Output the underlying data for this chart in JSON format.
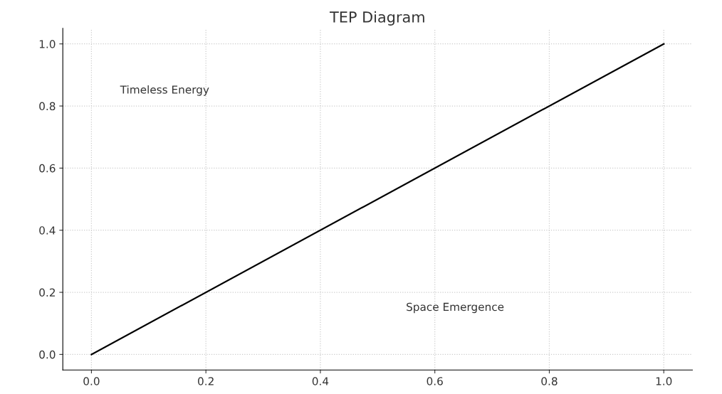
{
  "chart_data": {
    "type": "line",
    "title": "TEP Diagram",
    "x": [
      0,
      1
    ],
    "series": [
      {
        "color": "#000000",
        "values": [
          0,
          1
        ]
      }
    ],
    "xlim": [
      -0.05,
      1.05
    ],
    "ylim": [
      -0.05,
      1.05
    ],
    "xticks": [
      {
        "value": 0,
        "label": "0.0"
      },
      0.2,
      0.4,
      0.6,
      0.8,
      {
        "value": 1,
        "label": "1.0"
      }
    ],
    "yticks": [
      {
        "value": 0,
        "label": "0.0"
      },
      0.2,
      0.4,
      0.6,
      0.8,
      {
        "value": 1,
        "label": "1.0"
      }
    ],
    "grid": true,
    "annotations": [
      "Timeless Energy",
      "Space Emergence"
    ]
  }
}
